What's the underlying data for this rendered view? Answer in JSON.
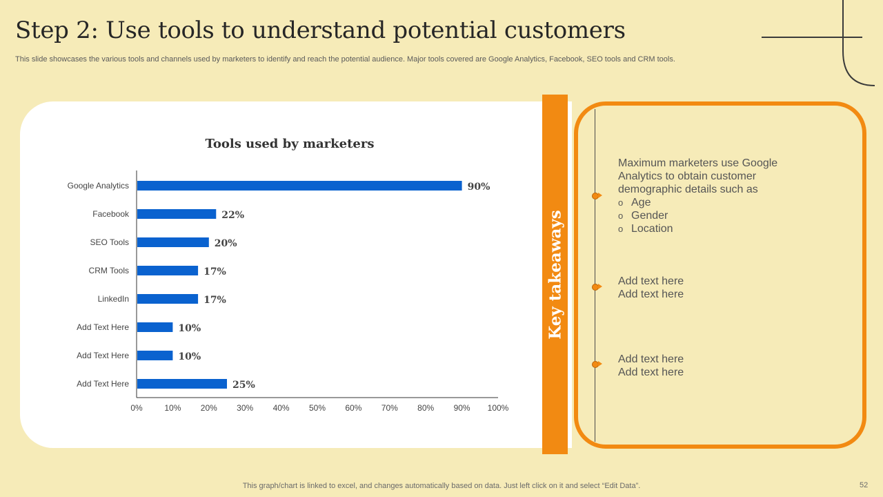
{
  "slide": {
    "title": "Step 2: Use tools to understand potential customers",
    "subtitle": "This slide showcases the various tools and channels used by marketers to identify and reach the potential audience. Major tools covered are Google Analytics, Facebook, SEO tools and CRM tools.",
    "footer_note": "This graph/chart is linked to excel,  and changes automatically based on data. Just left click on it and select “Edit Data”.",
    "page_number": "52"
  },
  "takeaways": {
    "label": "Key takeaways",
    "items": [
      {
        "lines": [
          "Maximum marketers use Google",
          "Analytics to obtain customer",
          "demographic details such as"
        ],
        "bullets": [
          "Age",
          "Gender",
          "Location"
        ],
        "bullet_symbol": "o"
      },
      {
        "lines": [
          "Add text here",
          "Add text here"
        ],
        "bullets": []
      },
      {
        "lines": [
          "Add text here",
          "Add text here"
        ],
        "bullets": []
      }
    ]
  },
  "colors": {
    "background": "#f6ebb8",
    "accent": "#f28a12",
    "bar": "#0a62cf"
  },
  "chart_data": {
    "type": "bar",
    "orientation": "horizontal",
    "title": "Tools used by marketers",
    "categories": [
      "Google Analytics",
      "Facebook",
      "SEO Tools",
      "CRM Tools",
      "LinkedIn",
      "Add Text Here",
      "Add Text Here",
      "Add Text Here"
    ],
    "values": [
      90,
      22,
      20,
      17,
      17,
      10,
      10,
      25
    ],
    "data_labels": [
      "90%",
      "22%",
      "20%",
      "17%",
      "17%",
      "10%",
      "10%",
      "25%"
    ],
    "xlim": [
      0,
      100
    ],
    "x_ticks": [
      "0%",
      "10%",
      "20%",
      "30%",
      "40%",
      "50%",
      "60%",
      "70%",
      "80%",
      "90%",
      "100%"
    ],
    "xlabel": "",
    "ylabel": "",
    "grid": false
  }
}
